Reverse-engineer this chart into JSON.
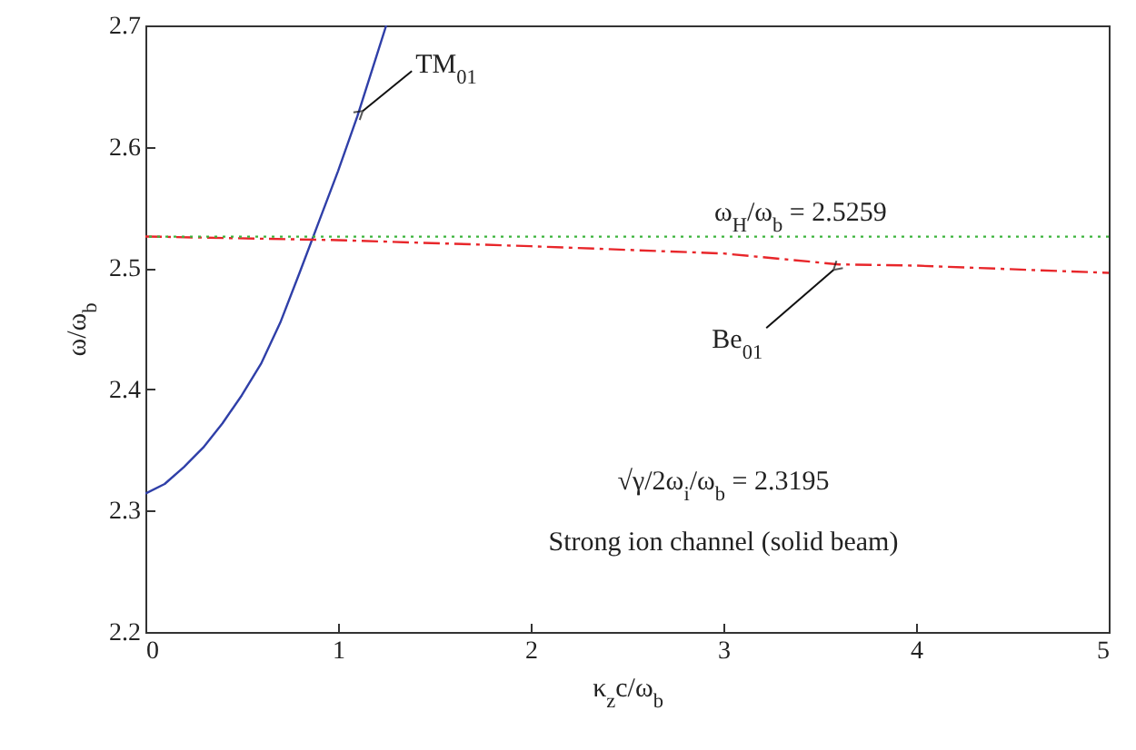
{
  "chart_data": {
    "type": "line",
    "xlabel": "κ$_{z}$c/ω$_{b}$",
    "ylabel": "ω/ω$_{b}$",
    "xlim": [
      0,
      5
    ],
    "xticks": [
      0,
      1,
      2,
      3,
      4,
      5
    ],
    "ylim": [
      2.2,
      2.7
    ],
    "yticks": [
      2.2,
      2.3,
      2.4,
      2.5,
      2.6,
      2.7
    ],
    "grid": false,
    "marker": "none",
    "series": [
      {
        "name": "TM$_{01}$",
        "color": "#2f3fa8",
        "line_style": "solid",
        "x": [
          0,
          0.1,
          0.2,
          0.3,
          0.4,
          0.5,
          0.6,
          0.7,
          0.8,
          0.9,
          1.0,
          1.1,
          1.2,
          1.25
        ],
        "values": [
          2.314,
          2.322,
          2.336,
          2.352,
          2.372,
          2.395,
          2.421,
          2.455,
          2.496,
          2.538,
          2.58,
          2.625,
          2.675,
          2.7
        ]
      },
      {
        "name": "Be$_{01}$",
        "color": "#e8262a",
        "line_style": "dashed",
        "x": [
          0,
          1,
          2,
          3,
          3.6,
          4,
          5
        ],
        "values": [
          2.526,
          2.523,
          2.518,
          2.512,
          2.503,
          2.502,
          2.496
        ]
      }
    ],
    "ref_lines": [
      {
        "axis": "y",
        "value": 2.5259,
        "label": "ω$_{H}$/ω$_{b}$ = 2.5259",
        "color": "#3cb43c",
        "line_style": "dotted"
      }
    ],
    "annotations": [
      "√γ/2ω$_{i}$/ω$_{b}$ = 2.3195",
      "Strong ion channel (solid beam)"
    ]
  }
}
